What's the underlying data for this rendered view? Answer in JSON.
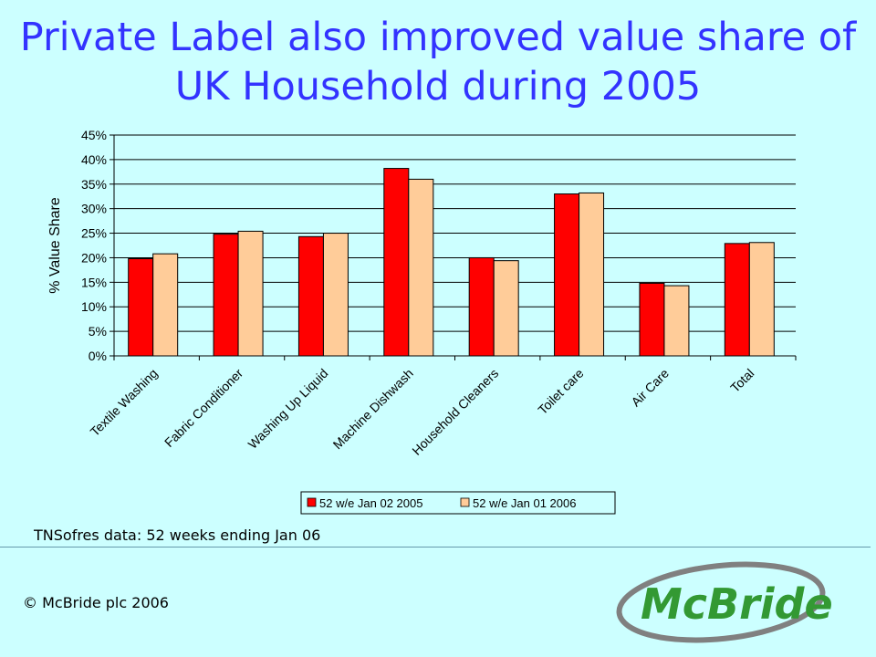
{
  "slide": {
    "title_line1": "Private Label also improved value share of",
    "title_line2": "UK Household during 2005",
    "source_note": "TNSofres data: 52 weeks ending Jan 06",
    "copyright": "© McBride plc 2006",
    "logo_text": "McBride"
  },
  "colors": {
    "title": "#3333ff",
    "background": "#ccffff",
    "series_2005": "#ff0000",
    "series_2006": "#ffcc99",
    "logo_green": "#339933",
    "logo_gray": "#808080"
  },
  "chart_data": {
    "type": "bar",
    "title": "",
    "xlabel": "",
    "ylabel": "% Value Share",
    "ylim": [
      0,
      45
    ],
    "y_ticks": [
      "0%",
      "5%",
      "10%",
      "15%",
      "20%",
      "25%",
      "30%",
      "35%",
      "40%",
      "45%"
    ],
    "grid": true,
    "legend_position": "bottom",
    "categories": [
      "Textile Washing",
      "Fabric Conditioner",
      "Washing Up Liquid",
      "Machine Dishwash",
      "Household Cleaners",
      "Toilet care",
      "Air Care",
      "Total"
    ],
    "series": [
      {
        "name": "52 w/e Jan 02 2005",
        "values": [
          19.8,
          24.8,
          24.3,
          38.2,
          20.0,
          33.0,
          14.8,
          22.9
        ]
      },
      {
        "name": "52 w/e Jan 01 2006",
        "values": [
          20.8,
          25.4,
          25.0,
          36.0,
          19.4,
          33.2,
          14.3,
          23.1
        ]
      }
    ]
  }
}
